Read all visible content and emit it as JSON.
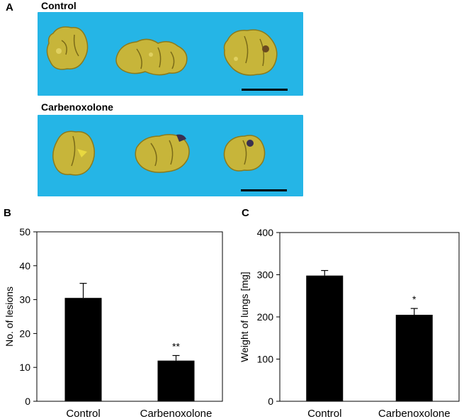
{
  "panels": {
    "a": {
      "letter": "A",
      "groups": [
        "Control",
        "Carbenoxolone"
      ],
      "photo_bg": "#25B5E6",
      "tissue_color": "#C7B53A"
    },
    "b": {
      "letter": "B"
    },
    "c": {
      "letter": "C"
    }
  },
  "chart_data": [
    {
      "type": "bar",
      "panel": "B",
      "categories": [
        "Control",
        "Carbenoxolone"
      ],
      "values": [
        30.5,
        12
      ],
      "errors": [
        4.3,
        1.5
      ],
      "significance": [
        "",
        "**"
      ],
      "ylabel": "No. of lesions",
      "ylim": [
        0,
        50
      ],
      "yticks": [
        0,
        10,
        20,
        30,
        40,
        50
      ],
      "bar_color": "#000000",
      "grid": false
    },
    {
      "type": "bar",
      "panel": "C",
      "categories": [
        "Control",
        "Carbenoxolone"
      ],
      "values": [
        298,
        205
      ],
      "errors": [
        12,
        15
      ],
      "significance": [
        "",
        "*"
      ],
      "ylabel": "Weight of lungs [mg]",
      "ylim": [
        0,
        400
      ],
      "yticks": [
        0,
        100,
        200,
        300,
        400
      ],
      "bar_color": "#000000",
      "grid": false
    }
  ]
}
